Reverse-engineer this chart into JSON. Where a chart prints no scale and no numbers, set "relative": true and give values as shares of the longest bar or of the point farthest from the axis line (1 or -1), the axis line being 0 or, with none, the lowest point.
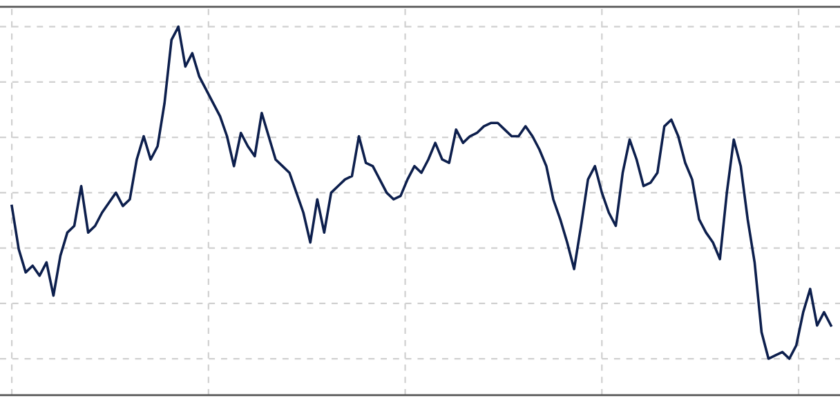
{
  "chart_data": {
    "type": "line",
    "relative": true,
    "grid": true,
    "marker": "none",
    "line_style": "solid",
    "categories": [
      null,
      null,
      null,
      null,
      null,
      null,
      null,
      null,
      null,
      null,
      null,
      null,
      null,
      null,
      null,
      null,
      null,
      null,
      null,
      null,
      null,
      null,
      null,
      null,
      null,
      null,
      null,
      null,
      null,
      null,
      null,
      null,
      null,
      null,
      null,
      null,
      null,
      null,
      null,
      null,
      null,
      null,
      null,
      null,
      null,
      null,
      null,
      null,
      null,
      null,
      null,
      null,
      null,
      null,
      null,
      null,
      null,
      null,
      null,
      null,
      null,
      null,
      null,
      null,
      null,
      null,
      null,
      null,
      null,
      null,
      null,
      null,
      null,
      null,
      null,
      null,
      null,
      null,
      null,
      null,
      null,
      null,
      null,
      null,
      null,
      null,
      null,
      null,
      null,
      null,
      null,
      null,
      null,
      null,
      null,
      null,
      null,
      null,
      null,
      null,
      null,
      null,
      null,
      null,
      null,
      null,
      null,
      null,
      null,
      null,
      null,
      null,
      null,
      null,
      null,
      null,
      null,
      null,
      null
    ],
    "series": [
      {
        "color": "#0d1f4d",
        "values": [
          0.46,
          0.33,
          0.26,
          0.28,
          0.25,
          0.29,
          0.19,
          0.31,
          0.38,
          0.4,
          0.52,
          0.38,
          0.4,
          0.44,
          0.47,
          0.5,
          0.46,
          0.48,
          0.6,
          0.67,
          0.6,
          0.64,
          0.77,
          0.96,
          1.0,
          0.88,
          0.92,
          0.85,
          0.81,
          0.77,
          0.73,
          0.67,
          0.58,
          0.68,
          0.64,
          0.61,
          0.74,
          0.67,
          0.6,
          0.58,
          0.56,
          0.5,
          0.44,
          0.35,
          0.48,
          0.38,
          0.5,
          0.52,
          0.54,
          0.55,
          0.67,
          0.59,
          0.58,
          0.54,
          0.5,
          0.48,
          0.49,
          0.54,
          0.58,
          0.56,
          0.6,
          0.65,
          0.6,
          0.59,
          0.69,
          0.65,
          0.67,
          0.68,
          0.7,
          0.71,
          0.71,
          0.69,
          0.67,
          0.67,
          0.7,
          0.67,
          0.63,
          0.58,
          0.48,
          0.42,
          0.35,
          0.27,
          0.4,
          0.54,
          0.58,
          0.5,
          0.44,
          0.4,
          0.56,
          0.66,
          0.6,
          0.52,
          0.53,
          0.56,
          0.7,
          0.72,
          0.67,
          0.59,
          0.54,
          0.42,
          0.38,
          0.35,
          0.3,
          0.5,
          0.66,
          0.58,
          0.42,
          0.29,
          0.08,
          0.0,
          0.01,
          0.02,
          0.0,
          0.04,
          0.14,
          0.21,
          0.1,
          0.14,
          0.1
        ]
      }
    ]
  }
}
